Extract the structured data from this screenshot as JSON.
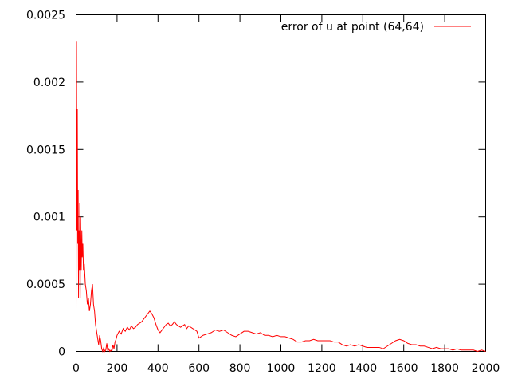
{
  "chart_data": {
    "type": "line",
    "title": "",
    "xlabel": "",
    "ylabel": "",
    "xlim": [
      0,
      2000
    ],
    "ylim": [
      0,
      0.0025
    ],
    "x_ticks": [
      "0",
      "200",
      "400",
      "600",
      "800",
      "1000",
      "1200",
      "1400",
      "1600",
      "1800",
      "2000"
    ],
    "y_ticks": [
      "0",
      "0.0005",
      "0.001",
      "0.0015",
      "0.002",
      "0.0025"
    ],
    "grid": false,
    "legend_position": "top-right",
    "series": [
      {
        "name": "error of u at point (64,64)",
        "color": "#ff0000",
        "x": [
          0,
          2,
          4,
          6,
          8,
          10,
          12,
          14,
          16,
          18,
          20,
          22,
          25,
          28,
          30,
          33,
          36,
          40,
          45,
          50,
          55,
          60,
          65,
          70,
          75,
          80,
          85,
          90,
          95,
          100,
          105,
          110,
          115,
          120,
          125,
          130,
          135,
          140,
          145,
          150,
          155,
          160,
          165,
          170,
          175,
          180,
          185,
          190,
          195,
          200,
          210,
          220,
          230,
          240,
          250,
          260,
          270,
          280,
          290,
          300,
          310,
          320,
          330,
          340,
          350,
          360,
          370,
          380,
          390,
          400,
          410,
          420,
          430,
          440,
          450,
          460,
          470,
          480,
          490,
          500,
          510,
          520,
          530,
          540,
          550,
          560,
          570,
          580,
          590,
          600,
          620,
          640,
          660,
          680,
          700,
          720,
          740,
          760,
          780,
          800,
          820,
          840,
          860,
          880,
          900,
          920,
          940,
          960,
          980,
          1000,
          1020,
          1040,
          1060,
          1080,
          1100,
          1120,
          1140,
          1160,
          1180,
          1200,
          1220,
          1240,
          1260,
          1280,
          1300,
          1320,
          1340,
          1360,
          1380,
          1400,
          1420,
          1440,
          1460,
          1480,
          1500,
          1520,
          1540,
          1560,
          1580,
          1600,
          1620,
          1640,
          1660,
          1680,
          1700,
          1720,
          1740,
          1760,
          1780,
          1800,
          1820,
          1840,
          1860,
          1880,
          1900,
          1920,
          1940,
          1960,
          1980,
          2000
        ],
        "y": [
          0.0003,
          0.0023,
          0.0009,
          0.0018,
          0.0008,
          0.0012,
          0.0004,
          0.0009,
          0.0006,
          0.0011,
          0.0004,
          0.001,
          0.0006,
          0.0009,
          0.0007,
          0.0008,
          0.0006,
          0.00065,
          0.0005,
          0.00045,
          0.00035,
          0.0004,
          0.0003,
          0.00035,
          0.00045,
          0.0005,
          0.00035,
          0.0003,
          0.0002,
          0.00015,
          0.0001,
          5e-05,
          0.00012,
          8e-05,
          2e-05,
          0.0,
          3e-05,
          0.0,
          1e-05,
          6e-05,
          0.0,
          2e-05,
          0.0,
          1e-05,
          0.0,
          5e-05,
          2e-05,
          7e-05,
          9e-05,
          0.00012,
          0.00015,
          0.00013,
          0.00017,
          0.00015,
          0.00018,
          0.00016,
          0.00019,
          0.00017,
          0.00018,
          0.0002,
          0.00021,
          0.00022,
          0.00024,
          0.00026,
          0.00028,
          0.0003,
          0.00028,
          0.00025,
          0.0002,
          0.00016,
          0.00014,
          0.00016,
          0.00018,
          0.0002,
          0.00021,
          0.00019,
          0.0002,
          0.00022,
          0.0002,
          0.00019,
          0.00018,
          0.00019,
          0.0002,
          0.00017,
          0.00019,
          0.00018,
          0.00017,
          0.00016,
          0.00015,
          0.0001,
          0.00012,
          0.00013,
          0.00014,
          0.00016,
          0.00015,
          0.00016,
          0.00014,
          0.00012,
          0.00011,
          0.00013,
          0.00015,
          0.00015,
          0.00014,
          0.00013,
          0.00014,
          0.00012,
          0.00012,
          0.00011,
          0.00012,
          0.00011,
          0.00011,
          0.0001,
          9e-05,
          7e-05,
          7e-05,
          8e-05,
          8e-05,
          9e-05,
          8e-05,
          8e-05,
          8e-05,
          8e-05,
          7e-05,
          7e-05,
          5e-05,
          4e-05,
          5e-05,
          4e-05,
          5e-05,
          4e-05,
          3e-05,
          3e-05,
          3e-05,
          3e-05,
          2e-05,
          4e-05,
          6e-05,
          8e-05,
          9e-05,
          8e-05,
          6e-05,
          5e-05,
          5e-05,
          4e-05,
          4e-05,
          3e-05,
          2e-05,
          3e-05,
          2e-05,
          2e-05,
          2e-05,
          1e-05,
          2e-05,
          1e-05,
          1e-05,
          1e-05,
          1e-05,
          0.0,
          1e-05,
          0.0
        ]
      }
    ]
  }
}
